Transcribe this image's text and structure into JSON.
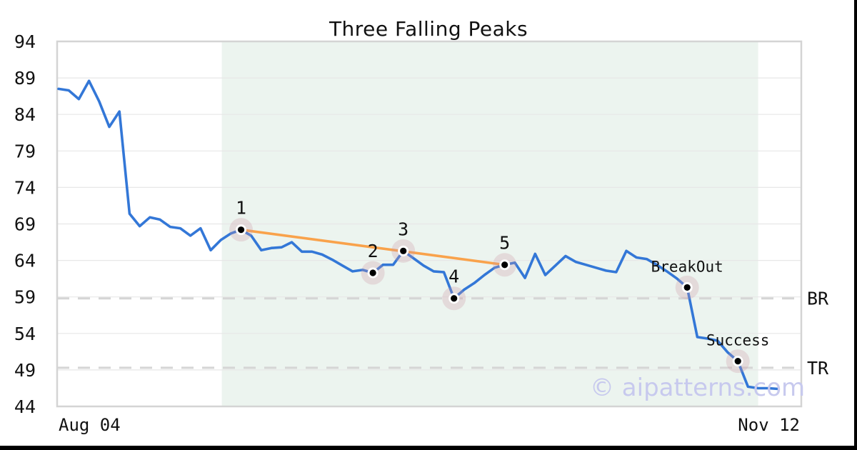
{
  "title": "Three Falling Peaks",
  "watermark": "© aipatterns.com",
  "colors": {
    "line": "#3377d7",
    "trendline": "#f9a24b",
    "zone": "#ecf4ef",
    "grid": "#e7e7e7",
    "spine": "#d4d4d4",
    "level_dash": "#d5d5d5",
    "marker_halo": "rgba(205,150,165,0.28)",
    "marker_ring": "#ffffff",
    "marker_dot": "#000000",
    "text": "#111111"
  },
  "chart_data": {
    "type": "line",
    "title": "Three Falling Peaks",
    "x_start_label": "Aug 04",
    "x_end_label": "Nov 12",
    "ylim": [
      44,
      94
    ],
    "yticks": [
      44,
      49,
      54,
      59,
      64,
      69,
      74,
      79,
      84,
      89,
      94
    ],
    "grid": true,
    "legend": "none",
    "values": [
      87.5,
      87.3,
      86.1,
      88.6,
      85.8,
      82.3,
      84.4,
      70.4,
      68.7,
      69.9,
      69.6,
      68.6,
      68.4,
      67.4,
      68.4,
      65.4,
      66.8,
      67.7,
      68.2,
      67.4,
      65.4,
      65.7,
      65.8,
      66.5,
      65.2,
      65.2,
      64.8,
      64.1,
      63.3,
      62.5,
      62.7,
      62.3,
      63.4,
      63.4,
      65.3,
      64.3,
      63.3,
      62.5,
      62.4,
      58.8,
      60.0,
      60.9,
      62.0,
      63.0,
      63.4,
      63.7,
      61.6,
      64.9,
      62.0,
      63.3,
      64.6,
      63.8,
      63.4,
      63.0,
      62.6,
      62.4,
      65.3,
      64.4,
      64.2,
      63.4,
      62.5,
      61.5,
      60.3,
      53.5,
      53.3,
      53.0,
      51.4,
      50.2,
      46.7,
      46.5,
      46.5,
      46.4
    ],
    "pattern_zone": {
      "start_index": 16.1,
      "end_index": 69.0
    },
    "trendline": {
      "from_index": 18,
      "to_index": 44
    },
    "levels": [
      {
        "label": "BR",
        "value": 58.8
      },
      {
        "label": "TR",
        "value": 49.3
      }
    ],
    "markers": [
      {
        "label": "1",
        "index": 18
      },
      {
        "label": "2",
        "index": 31
      },
      {
        "label": "3",
        "index": 34
      },
      {
        "label": "4",
        "index": 39
      },
      {
        "label": "5",
        "index": 44
      },
      {
        "label": "BreakOut",
        "index": 62
      },
      {
        "label": "Success",
        "index": 67
      }
    ]
  }
}
